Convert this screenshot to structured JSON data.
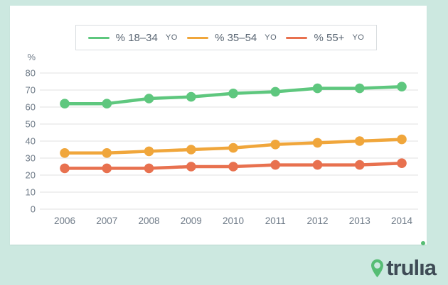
{
  "theme": {
    "page_background": "#cce8e0",
    "card_background": "#ffffff",
    "grid_color": "#e7e8e8",
    "axis_text_color": "#6e7a87",
    "legend_text_color": "#5a6673",
    "legend_border_color": "#d9dde0",
    "logo_text_color": "#3e4b55",
    "logo_green": "#56bd74"
  },
  "chart_data": {
    "type": "line",
    "x": [
      2006,
      2007,
      2008,
      2009,
      2010,
      2011,
      2012,
      2013,
      2014
    ],
    "series": [
      {
        "name": "% 18–34 YO",
        "label": "% 18–34",
        "suffix": "yo",
        "color": "#5ec77e",
        "values": [
          62,
          62,
          65,
          66,
          68,
          69,
          71,
          71,
          72
        ]
      },
      {
        "name": "% 35–54 YO",
        "label": "% 35–54",
        "suffix": "yo",
        "color": "#f0a63b",
        "values": [
          33,
          33,
          34,
          35,
          36,
          38,
          39,
          40,
          41
        ]
      },
      {
        "name": "% 55+ YO",
        "label": "% 55+",
        "suffix": "yo",
        "color": "#e8714f",
        "values": [
          24,
          24,
          24,
          25,
          25,
          26,
          26,
          26,
          27
        ]
      }
    ],
    "ylabel": "%",
    "ylim": [
      0,
      80
    ],
    "ytick_step": 10,
    "grid": true,
    "legend_position": "top"
  },
  "branding": {
    "logo_text": "trulia",
    "logo_parts": {
      "pre": "trul",
      "i_stem": "ı",
      "post": "a"
    }
  }
}
